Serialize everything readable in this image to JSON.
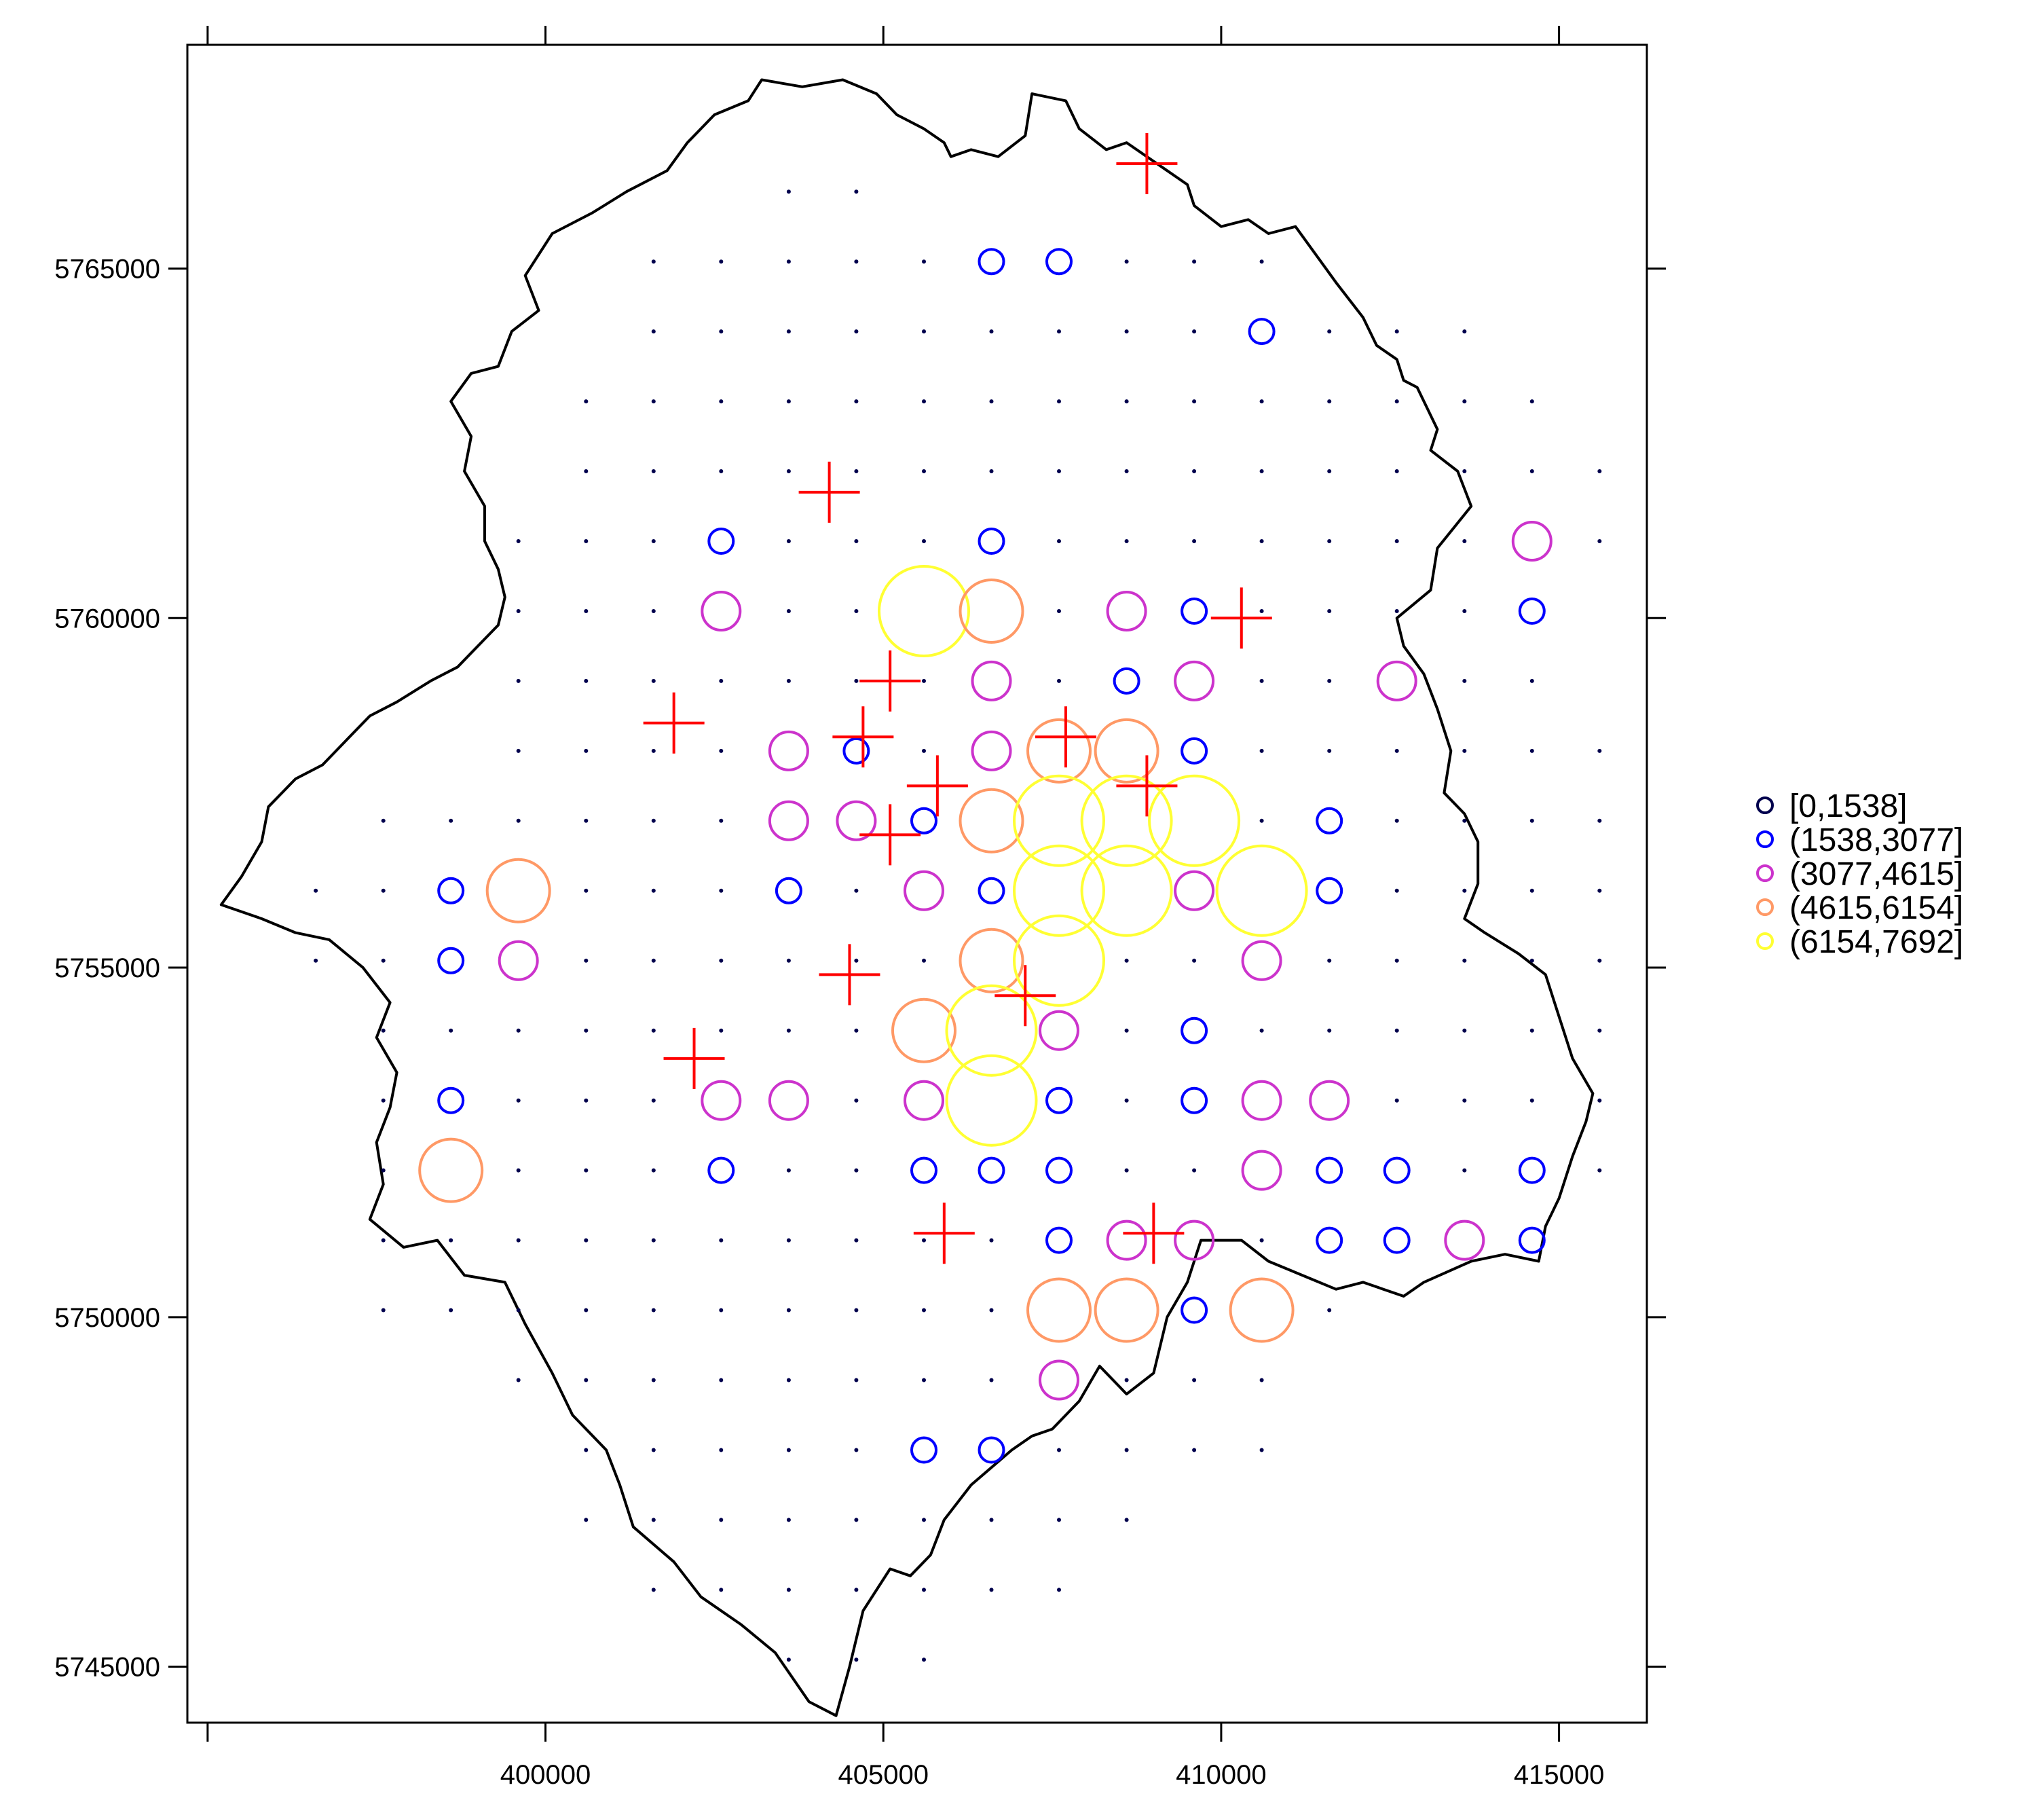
{
  "chart_data": {
    "type": "scatter",
    "title": "",
    "xlabel": "",
    "ylabel": "",
    "xlim": [
      394700,
      416300
    ],
    "ylim": [
      5744200,
      5768200
    ],
    "grid": false,
    "xticks": [
      400000,
      405000,
      410000,
      415000
    ],
    "yticks": [
      5745000,
      5750000,
      5755000,
      5760000,
      5765000
    ],
    "xtick_labels": [
      "400000",
      "405000",
      "410000",
      "415000"
    ],
    "ytick_labels": [
      "5745000",
      "5750000",
      "5755000",
      "5760000",
      "5765000"
    ],
    "legend_position": "right",
    "legend": [
      {
        "label": "[0,1538]",
        "color": "#00004d",
        "class": 0
      },
      {
        "label": "(1538,3077]",
        "color": "#0000ff",
        "class": 1
      },
      {
        "label": "(3077,4615]",
        "color": "#cc33cc",
        "class": 2
      },
      {
        "label": "(4615,6154]",
        "color": "#ff9966",
        "class": 3
      },
      {
        "label": "(6154,7692]",
        "color": "#ffff33",
        "class": 4
      }
    ],
    "boundary_color": "#000000",
    "cross_color": "#ff0000",
    "boundary": [
      [
        403000,
        5767400
      ],
      [
        403200,
        5767700
      ],
      [
        403800,
        5767600
      ],
      [
        404400,
        5767700
      ],
      [
        404900,
        5767500
      ],
      [
        405200,
        5767200
      ],
      [
        405600,
        5767000
      ],
      [
        405900,
        5766800
      ],
      [
        406000,
        5766600
      ],
      [
        406300,
        5766700
      ],
      [
        406700,
        5766600
      ],
      [
        407100,
        5766900
      ],
      [
        407200,
        5767500
      ],
      [
        407700,
        5767400
      ],
      [
        407900,
        5767000
      ],
      [
        408300,
        5766700
      ],
      [
        408600,
        5766800
      ],
      [
        409200,
        5766400
      ],
      [
        409500,
        5766200
      ],
      [
        409600,
        5765900
      ],
      [
        410000,
        5765600
      ],
      [
        410400,
        5765700
      ],
      [
        410700,
        5765500
      ],
      [
        411100,
        5765600
      ],
      [
        411400,
        5765200
      ],
      [
        411700,
        5764800
      ],
      [
        412100,
        5764300
      ],
      [
        412300,
        5763900
      ],
      [
        412600,
        5763700
      ],
      [
        412700,
        5763400
      ],
      [
        412900,
        5763300
      ],
      [
        413200,
        5762700
      ],
      [
        413100,
        5762400
      ],
      [
        413500,
        5762100
      ],
      [
        413700,
        5761600
      ],
      [
        413200,
        5761000
      ],
      [
        413100,
        5760400
      ],
      [
        412600,
        5760000
      ],
      [
        412700,
        5759600
      ],
      [
        413000,
        5759200
      ],
      [
        413200,
        5758700
      ],
      [
        413400,
        5758100
      ],
      [
        413300,
        5757500
      ],
      [
        413600,
        5757200
      ],
      [
        413800,
        5756800
      ],
      [
        413800,
        5756200
      ],
      [
        413600,
        5755700
      ],
      [
        413900,
        5755500
      ],
      [
        414400,
        5755200
      ],
      [
        414800,
        5754900
      ],
      [
        415000,
        5754300
      ],
      [
        415200,
        5753700
      ],
      [
        415500,
        5753200
      ],
      [
        415400,
        5752800
      ],
      [
        415200,
        5752300
      ],
      [
        415000,
        5751700
      ],
      [
        414800,
        5751300
      ],
      [
        414700,
        5750800
      ],
      [
        414200,
        5750900
      ],
      [
        413700,
        5750800
      ],
      [
        413000,
        5750500
      ],
      [
        412700,
        5750300
      ],
      [
        412100,
        5750500
      ],
      [
        411700,
        5750400
      ],
      [
        411200,
        5750600
      ],
      [
        410700,
        5750800
      ],
      [
        410300,
        5751100
      ],
      [
        409700,
        5751100
      ],
      [
        409500,
        5750500
      ],
      [
        409200,
        5750000
      ],
      [
        409000,
        5749200
      ],
      [
        408600,
        5748900
      ],
      [
        408200,
        5749300
      ],
      [
        407900,
        5748800
      ],
      [
        407500,
        5748400
      ],
      [
        407200,
        5748300
      ],
      [
        406900,
        5748100
      ],
      [
        406300,
        5747600
      ],
      [
        405900,
        5747100
      ],
      [
        405700,
        5746600
      ],
      [
        405400,
        5746300
      ],
      [
        405100,
        5746400
      ],
      [
        404700,
        5745800
      ],
      [
        404500,
        5745000
      ],
      [
        404300,
        5744300
      ],
      [
        403900,
        5744500
      ],
      [
        403400,
        5745200
      ],
      [
        402900,
        5745600
      ],
      [
        402300,
        5746000
      ],
      [
        401900,
        5746500
      ],
      [
        401300,
        5747000
      ],
      [
        401100,
        5747600
      ],
      [
        400900,
        5748100
      ],
      [
        400400,
        5748600
      ],
      [
        400100,
        5749200
      ],
      [
        399700,
        5749900
      ],
      [
        399400,
        5750500
      ],
      [
        398800,
        5750600
      ],
      [
        398400,
        5751100
      ],
      [
        397900,
        5751000
      ],
      [
        397400,
        5751400
      ],
      [
        397600,
        5751900
      ],
      [
        397500,
        5752500
      ],
      [
        397700,
        5753000
      ],
      [
        397800,
        5753500
      ],
      [
        397500,
        5754000
      ],
      [
        397700,
        5754500
      ],
      [
        397300,
        5755000
      ],
      [
        396800,
        5755400
      ],
      [
        396300,
        5755500
      ],
      [
        395800,
        5755700
      ],
      [
        395200,
        5755900
      ],
      [
        395500,
        5756300
      ],
      [
        395800,
        5756800
      ],
      [
        395900,
        5757300
      ],
      [
        396300,
        5757700
      ],
      [
        396700,
        5757900
      ],
      [
        397000,
        5758200
      ],
      [
        397400,
        5758600
      ],
      [
        397800,
        5758800
      ],
      [
        398300,
        5759100
      ],
      [
        398700,
        5759300
      ],
      [
        399000,
        5759600
      ],
      [
        399300,
        5759900
      ],
      [
        399400,
        5760300
      ],
      [
        399300,
        5760700
      ],
      [
        399100,
        5761100
      ],
      [
        399100,
        5761600
      ],
      [
        398800,
        5762100
      ],
      [
        398900,
        5762600
      ],
      [
        398600,
        5763100
      ],
      [
        398900,
        5763500
      ],
      [
        399300,
        5763600
      ],
      [
        399500,
        5764100
      ],
      [
        399900,
        5764400
      ],
      [
        399700,
        5764900
      ],
      [
        400100,
        5765500
      ],
      [
        400700,
        5765800
      ],
      [
        401200,
        5766100
      ],
      [
        401800,
        5766400
      ],
      [
        402100,
        5766800
      ],
      [
        402500,
        5767200
      ]
    ],
    "grid_points": {
      "x_start": 396600,
      "x_step": 1000,
      "y_start": 5766100,
      "y_step": -1000,
      "rows": [
        [
          null,
          null,
          null,
          null,
          null,
          null,
          null,
          0,
          0,
          null,
          null,
          null,
          null,
          null,
          null,
          null,
          null,
          null,
          null,
          null
        ],
        [
          null,
          null,
          null,
          null,
          null,
          0,
          0,
          0,
          0,
          0,
          1,
          1,
          0,
          0,
          0,
          null,
          null,
          null,
          null,
          null
        ],
        [
          null,
          null,
          null,
          null,
          null,
          0,
          0,
          0,
          0,
          0,
          0,
          0,
          0,
          0,
          1,
          0,
          0,
          0,
          null,
          null
        ],
        [
          null,
          null,
          null,
          null,
          0,
          0,
          0,
          0,
          0,
          0,
          0,
          0,
          0,
          0,
          0,
          0,
          0,
          0,
          0,
          null
        ],
        [
          null,
          null,
          null,
          null,
          0,
          0,
          0,
          0,
          0,
          0,
          0,
          0,
          0,
          0,
          0,
          0,
          0,
          0,
          0,
          0
        ],
        [
          null,
          null,
          null,
          0,
          0,
          0,
          1,
          0,
          0,
          0,
          1,
          0,
          0,
          0,
          0,
          0,
          0,
          0,
          2,
          0
        ],
        [
          null,
          null,
          null,
          0,
          0,
          0,
          2,
          0,
          0,
          4,
          3,
          0,
          2,
          1,
          0,
          0,
          0,
          0,
          1,
          null
        ],
        [
          null,
          null,
          null,
          0,
          0,
          0,
          0,
          0,
          0,
          0,
          2,
          0,
          1,
          2,
          0,
          0,
          2,
          0,
          0,
          null
        ],
        [
          null,
          null,
          null,
          0,
          0,
          0,
          0,
          2,
          1,
          0,
          2,
          3,
          3,
          1,
          0,
          0,
          0,
          0,
          0,
          0
        ],
        [
          null,
          0,
          0,
          0,
          0,
          0,
          0,
          2,
          2,
          1,
          3,
          4,
          4,
          4,
          0,
          1,
          0,
          0,
          0,
          0
        ],
        [
          0,
          0,
          1,
          3,
          0,
          0,
          0,
          1,
          0,
          2,
          1,
          4,
          4,
          2,
          4,
          1,
          0,
          0,
          0,
          0
        ],
        [
          0,
          0,
          1,
          2,
          0,
          0,
          0,
          0,
          0,
          0,
          3,
          4,
          0,
          0,
          2,
          0,
          0,
          0,
          0,
          0
        ],
        [
          null,
          0,
          0,
          0,
          0,
          0,
          0,
          0,
          0,
          3,
          4,
          2,
          0,
          1,
          0,
          0,
          0,
          0,
          0,
          0
        ],
        [
          null,
          0,
          1,
          0,
          0,
          0,
          2,
          2,
          0,
          2,
          4,
          1,
          0,
          1,
          2,
          2,
          0,
          0,
          0,
          0
        ],
        [
          null,
          0,
          3,
          0,
          0,
          0,
          1,
          0,
          0,
          1,
          1,
          1,
          0,
          0,
          2,
          1,
          1,
          0,
          1,
          0
        ],
        [
          null,
          0,
          0,
          0,
          0,
          0,
          0,
          0,
          0,
          0,
          0,
          1,
          2,
          2,
          0,
          1,
          1,
          2,
          1,
          null
        ],
        [
          null,
          0,
          0,
          0,
          0,
          0,
          0,
          0,
          0,
          0,
          0,
          3,
          3,
          1,
          3,
          0,
          null,
          null,
          null,
          null
        ],
        [
          null,
          null,
          null,
          0,
          0,
          0,
          0,
          0,
          0,
          0,
          0,
          2,
          0,
          0,
          0,
          null,
          null,
          null,
          null,
          null
        ],
        [
          null,
          null,
          null,
          null,
          0,
          0,
          0,
          0,
          0,
          1,
          1,
          0,
          0,
          0,
          0,
          null,
          null,
          null,
          null,
          null
        ],
        [
          null,
          null,
          null,
          null,
          0,
          0,
          0,
          0,
          0,
          0,
          0,
          0,
          0,
          null,
          null,
          null,
          null,
          null,
          null,
          null
        ],
        [
          null,
          null,
          null,
          null,
          null,
          0,
          0,
          0,
          0,
          0,
          0,
          0,
          null,
          null,
          null,
          null,
          null,
          null,
          null,
          null
        ],
        [
          null,
          null,
          null,
          null,
          null,
          null,
          null,
          0,
          0,
          0,
          null,
          null,
          null,
          null,
          null,
          null,
          null,
          null,
          null,
          null
        ]
      ]
    },
    "crosses": [
      [
        408900,
        5766500
      ],
      [
        404200,
        5761800
      ],
      [
        410300,
        5760000
      ],
      [
        405100,
        5759100
      ],
      [
        401900,
        5758500
      ],
      [
        404700,
        5758300
      ],
      [
        407700,
        5758300
      ],
      [
        405800,
        5757600
      ],
      [
        408900,
        5757600
      ],
      [
        405100,
        5756900
      ],
      [
        404500,
        5754900
      ],
      [
        407100,
        5754600
      ],
      [
        402200,
        5753700
      ],
      [
        405900,
        5751200
      ],
      [
        409000,
        5751200
      ]
    ]
  }
}
